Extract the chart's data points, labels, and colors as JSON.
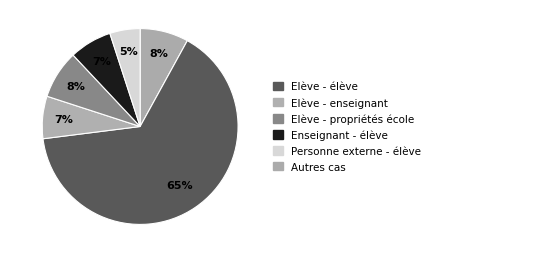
{
  "labels": [
    "Elève - élève",
    "Elève - enseignant",
    "Elève - propriétés école",
    "Enseignant - élève",
    "Personne externe - élève",
    "Autres cas"
  ],
  "values": [
    65,
    7,
    8,
    7,
    5,
    8
  ],
  "colors": [
    "#595959",
    "#b0b0b0",
    "#888888",
    "#1a1a1a",
    "#d8d8d8",
    "#ababab"
  ],
  "background_color": "#ffffff",
  "legend_fontsize": 7.5,
  "text_fontsize": 8,
  "startangle": 90
}
